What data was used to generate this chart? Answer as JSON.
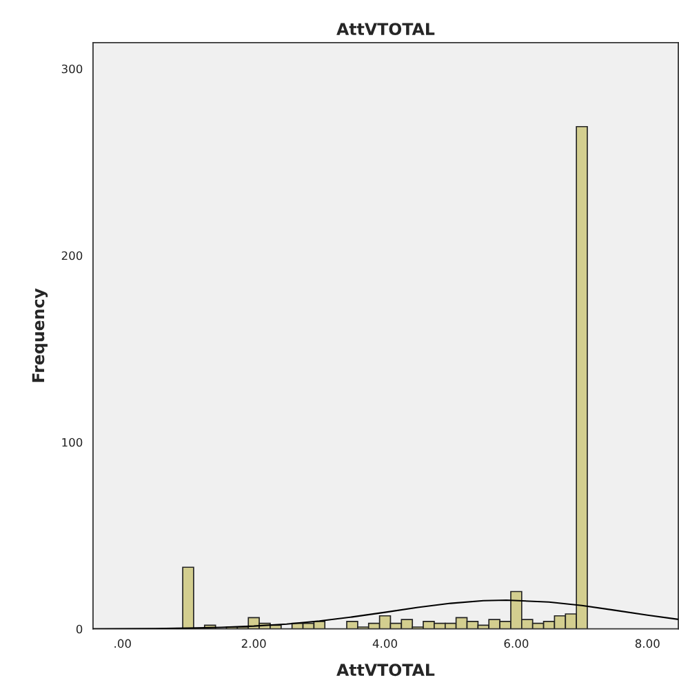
{
  "chart_data": {
    "type": "histogram",
    "title": "AttVTOTAL",
    "xlabel": "AttVTOTAL",
    "ylabel": "Frequency",
    "xlim": [
      -0.45,
      8.47
    ],
    "ylim": [
      0,
      314
    ],
    "xticks": [
      {
        "value": 0,
        "label": ".00"
      },
      {
        "value": 2,
        "label": "2.00"
      },
      {
        "value": 4,
        "label": "4.00"
      },
      {
        "value": 6,
        "label": "6.00"
      },
      {
        "value": 8,
        "label": "8.00"
      }
    ],
    "yticks": [
      0,
      100,
      200,
      300
    ],
    "grid": false,
    "series": [
      {
        "type": "histogram",
        "color": "#d3ce8f",
        "bins": [
          0.917,
          1.083,
          1.25,
          1.417,
          1.583,
          1.75,
          1.917,
          2.083,
          2.25,
          2.417,
          2.583,
          2.75,
          2.917,
          3.083,
          3.25,
          3.417,
          3.583,
          3.75,
          3.917,
          4.083,
          4.25,
          4.417,
          4.583,
          4.75,
          4.917,
          5.083,
          5.25,
          5.417,
          5.583,
          5.75,
          5.917,
          6.083,
          6.25,
          6.417,
          6.583,
          6.75,
          6.917,
          7.083
        ],
        "values": [
          33,
          0,
          2,
          0,
          1,
          1,
          6,
          3,
          2,
          0,
          3,
          3,
          4,
          0,
          0,
          4,
          1,
          3,
          7,
          3,
          5,
          1,
          4,
          3,
          3,
          6,
          4,
          2,
          5,
          4,
          20,
          5,
          3,
          4,
          7,
          8,
          269
        ]
      },
      {
        "type": "line",
        "color": "#000000",
        "x": [
          -0.45,
          0.5,
          1,
          1.5,
          2,
          2.5,
          3,
          3.5,
          4,
          4.5,
          5,
          5.5,
          5.85,
          6.5,
          7,
          7.5,
          8,
          8.47
        ],
        "values": [
          0,
          0.2,
          0.4,
          0.8,
          1.5,
          2.6,
          4.2,
          6.4,
          8.9,
          11.5,
          13.7,
          15.1,
          15.4,
          14.4,
          12.5,
          10.0,
          7.4,
          5.1
        ]
      }
    ]
  }
}
